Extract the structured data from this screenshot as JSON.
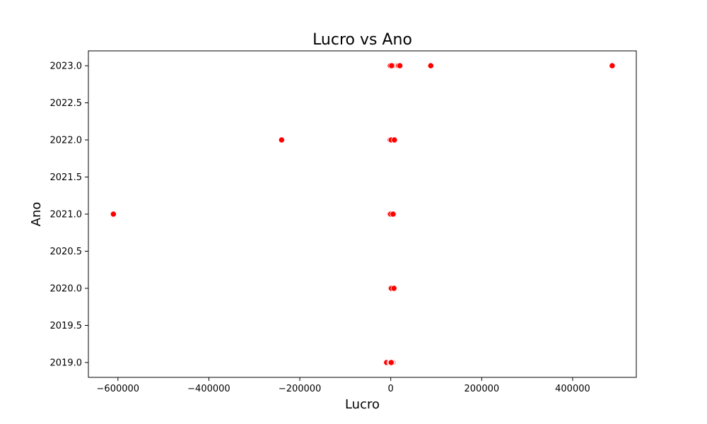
{
  "chart_data": {
    "type": "scatter",
    "title": "Lucro vs Ano",
    "xlabel": "Lucro",
    "ylabel": "Ano",
    "xlim": [
      -665000,
      540000
    ],
    "ylim": [
      2018.8,
      2023.2
    ],
    "x_ticks": [
      -600000,
      -400000,
      -200000,
      0,
      200000,
      400000
    ],
    "x_tick_labels": [
      "−600000",
      "−400000",
      "−200000",
      "0",
      "200000",
      "400000"
    ],
    "y_ticks": [
      2019.0,
      2019.5,
      2020.0,
      2020.5,
      2021.0,
      2021.5,
      2022.0,
      2022.5,
      2023.0
    ],
    "y_tick_labels": [
      "2019.0",
      "2019.5",
      "2020.0",
      "2020.5",
      "2021.0",
      "2021.5",
      "2022.0",
      "2022.5",
      "2023.0"
    ],
    "grid": false,
    "colors": {
      "point": "#ff0000",
      "point_edge": "#ffffff",
      "faint_point": "#f4c7c7"
    },
    "points": [
      {
        "x": -9000,
        "y": 2019
      },
      {
        "x": -2000,
        "y": 2019
      },
      {
        "x": 0,
        "y": 2019
      },
      {
        "x": 1000,
        "y": 2019
      },
      {
        "x": -1000,
        "y": 2020
      },
      {
        "x": 0,
        "y": 2020
      },
      {
        "x": 1500,
        "y": 2020
      },
      {
        "x": 7000,
        "y": 2020
      },
      {
        "x": -610000,
        "y": 2021
      },
      {
        "x": -2000,
        "y": 2021
      },
      {
        "x": 0,
        "y": 2021
      },
      {
        "x": 5000,
        "y": 2021
      },
      {
        "x": -240000,
        "y": 2022
      },
      {
        "x": -1000,
        "y": 2022
      },
      {
        "x": 1000,
        "y": 2022
      },
      {
        "x": 8000,
        "y": 2022
      },
      {
        "x": -1000,
        "y": 2023
      },
      {
        "x": 2000,
        "y": 2023
      },
      {
        "x": 17000,
        "y": 2023
      },
      {
        "x": 20000,
        "y": 2023
      },
      {
        "x": 88000,
        "y": 2023
      },
      {
        "x": 487000,
        "y": 2023
      }
    ],
    "faint_points": [
      {
        "x": -4000,
        "y": 2019
      },
      {
        "x": 6000,
        "y": 2019
      },
      {
        "x": 4000,
        "y": 2020
      },
      {
        "x": 7000,
        "y": 2021
      },
      {
        "x": -3000,
        "y": 2022
      },
      {
        "x": 9000,
        "y": 2023
      }
    ]
  }
}
